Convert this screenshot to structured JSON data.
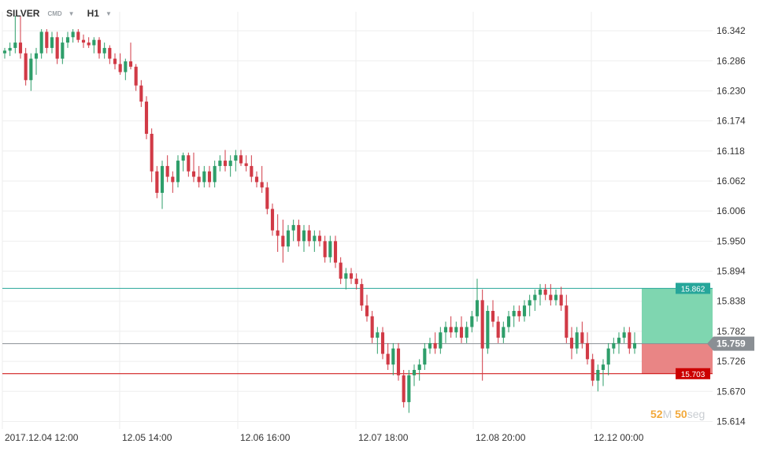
{
  "header": {
    "symbol": "SILVER",
    "badge": "CMD",
    "timeframe": "H1"
  },
  "price_axis": {
    "labels": [
      "16.342",
      "16.286",
      "16.230",
      "16.174",
      "16.118",
      "16.062",
      "16.006",
      "15.950",
      "15.894",
      "15.838",
      "15.782",
      "15.726",
      "15.670",
      "15.614"
    ],
    "values": [
      16.342,
      16.286,
      16.23,
      16.174,
      16.118,
      16.062,
      16.006,
      15.95,
      15.894,
      15.838,
      15.782,
      15.726,
      15.67,
      15.614
    ]
  },
  "time_axis": {
    "labels": [
      "2017.12.04  12:00",
      "12.05  14:00",
      "12.06  16:00",
      "12.07  18:00",
      "12.08  20:00",
      "12.12  00:00"
    ]
  },
  "levels": {
    "take_profit": {
      "value": 15.862,
      "label": "15.862",
      "color": "#26a69a"
    },
    "current": {
      "value": 15.759,
      "label": "15.759",
      "color": "#8a8f94"
    },
    "stop_loss": {
      "value": 15.703,
      "label": "15.703",
      "color": "#cc0000"
    }
  },
  "timer": {
    "minutes": "52",
    "minutes_unit": "M",
    "seconds": "50",
    "seconds_unit": "seg"
  },
  "colors": {
    "bull": "#2e9e6a",
    "bear": "#d13a46",
    "grid": "#eeeeee",
    "profit_zone": "#7fd6b0",
    "loss_zone": "#e98585"
  },
  "chart_data": {
    "type": "candlestick",
    "y_range": [
      15.6,
      16.37
    ],
    "candles": [
      [
        16.3,
        16.31,
        16.29,
        16.305
      ],
      [
        16.305,
        16.32,
        16.295,
        16.31
      ],
      [
        16.31,
        16.37,
        16.3,
        16.32
      ],
      [
        16.32,
        16.37,
        16.29,
        16.3
      ],
      [
        16.3,
        16.31,
        16.24,
        16.25
      ],
      [
        16.25,
        16.3,
        16.23,
        16.29
      ],
      [
        16.29,
        16.31,
        16.26,
        16.3
      ],
      [
        16.3,
        16.345,
        16.29,
        16.34
      ],
      [
        16.34,
        16.345,
        16.3,
        16.31
      ],
      [
        16.31,
        16.34,
        16.3,
        16.33
      ],
      [
        16.33,
        16.34,
        16.28,
        16.29
      ],
      [
        16.29,
        16.33,
        16.28,
        16.32
      ],
      [
        16.32,
        16.34,
        16.31,
        16.33
      ],
      [
        16.33,
        16.345,
        16.32,
        16.34
      ],
      [
        16.34,
        16.345,
        16.32,
        16.325
      ],
      [
        16.325,
        16.335,
        16.31,
        16.32
      ],
      [
        16.32,
        16.33,
        16.31,
        16.315
      ],
      [
        16.315,
        16.33,
        16.3,
        16.325
      ],
      [
        16.325,
        16.33,
        16.29,
        16.3
      ],
      [
        16.3,
        16.32,
        16.29,
        16.31
      ],
      [
        16.31,
        16.315,
        16.28,
        16.29
      ],
      [
        16.29,
        16.3,
        16.27,
        16.28
      ],
      [
        16.28,
        16.3,
        16.26,
        16.265
      ],
      [
        16.265,
        16.29,
        16.25,
        16.285
      ],
      [
        16.285,
        16.32,
        16.27,
        16.275
      ],
      [
        16.275,
        16.28,
        16.23,
        16.24
      ],
      [
        16.24,
        16.25,
        16.2,
        16.21
      ],
      [
        16.21,
        16.22,
        16.14,
        16.15
      ],
      [
        16.15,
        16.16,
        16.06,
        16.08
      ],
      [
        16.08,
        16.09,
        16.03,
        16.04
      ],
      [
        16.04,
        16.1,
        16.01,
        16.09
      ],
      [
        16.09,
        16.11,
        16.06,
        16.07
      ],
      [
        16.07,
        16.08,
        16.04,
        16.06
      ],
      [
        16.06,
        16.11,
        16.05,
        16.1
      ],
      [
        16.1,
        16.115,
        16.08,
        16.11
      ],
      [
        16.11,
        16.115,
        16.07,
        16.08
      ],
      [
        16.08,
        16.115,
        16.06,
        16.07
      ],
      [
        16.07,
        16.09,
        16.05,
        16.06
      ],
      [
        16.06,
        16.09,
        16.05,
        16.08
      ],
      [
        16.08,
        16.09,
        16.05,
        16.06
      ],
      [
        16.06,
        16.1,
        16.05,
        16.09
      ],
      [
        16.09,
        16.11,
        16.08,
        16.1
      ],
      [
        16.1,
        16.12,
        16.08,
        16.09
      ],
      [
        16.09,
        16.11,
        16.07,
        16.1
      ],
      [
        16.1,
        16.12,
        16.08,
        16.11
      ],
      [
        16.11,
        16.12,
        16.09,
        16.095
      ],
      [
        16.095,
        16.11,
        16.08,
        16.09
      ],
      [
        16.09,
        16.11,
        16.06,
        16.07
      ],
      [
        16.07,
        16.08,
        16.05,
        16.06
      ],
      [
        16.06,
        16.09,
        16.04,
        16.05
      ],
      [
        16.05,
        16.06,
        16.0,
        16.01
      ],
      [
        16.01,
        16.02,
        15.96,
        15.97
      ],
      [
        15.97,
        16.0,
        15.93,
        15.96
      ],
      [
        15.96,
        15.99,
        15.91,
        15.94
      ],
      [
        15.94,
        15.98,
        15.93,
        15.97
      ],
      [
        15.97,
        15.99,
        15.95,
        15.98
      ],
      [
        15.98,
        15.99,
        15.94,
        15.95
      ],
      [
        15.95,
        15.98,
        15.93,
        15.97
      ],
      [
        15.97,
        15.98,
        15.94,
        15.95
      ],
      [
        15.95,
        15.97,
        15.93,
        15.96
      ],
      [
        15.96,
        15.97,
        15.94,
        15.95
      ],
      [
        15.95,
        15.96,
        15.91,
        15.92
      ],
      [
        15.92,
        15.96,
        15.91,
        15.95
      ],
      [
        15.95,
        15.96,
        15.9,
        15.91
      ],
      [
        15.91,
        15.92,
        15.87,
        15.88
      ],
      [
        15.88,
        15.9,
        15.86,
        15.89
      ],
      [
        15.89,
        15.9,
        15.87,
        15.88
      ],
      [
        15.88,
        15.89,
        15.86,
        15.87
      ],
      [
        15.87,
        15.88,
        15.82,
        15.83
      ],
      [
        15.83,
        15.85,
        15.8,
        15.81
      ],
      [
        15.81,
        15.82,
        15.76,
        15.77
      ],
      [
        15.77,
        15.79,
        15.74,
        15.78
      ],
      [
        15.78,
        15.79,
        15.73,
        15.74
      ],
      [
        15.74,
        15.76,
        15.71,
        15.72
      ],
      [
        15.72,
        15.76,
        15.7,
        15.75
      ],
      [
        15.75,
        15.76,
        15.69,
        15.7
      ],
      [
        15.7,
        15.71,
        15.64,
        15.65
      ],
      [
        15.65,
        15.71,
        15.63,
        15.7
      ],
      [
        15.7,
        15.72,
        15.68,
        15.71
      ],
      [
        15.71,
        15.73,
        15.69,
        15.72
      ],
      [
        15.72,
        15.76,
        15.71,
        15.75
      ],
      [
        15.75,
        15.77,
        15.74,
        15.76
      ],
      [
        15.76,
        15.78,
        15.74,
        15.75
      ],
      [
        15.75,
        15.79,
        15.74,
        15.78
      ],
      [
        15.78,
        15.8,
        15.76,
        15.79
      ],
      [
        15.79,
        15.81,
        15.77,
        15.78
      ],
      [
        15.78,
        15.8,
        15.77,
        15.79
      ],
      [
        15.79,
        15.81,
        15.76,
        15.77
      ],
      [
        15.77,
        15.8,
        15.76,
        15.79
      ],
      [
        15.79,
        15.82,
        15.78,
        15.81
      ],
      [
        15.81,
        15.88,
        15.8,
        15.84
      ],
      [
        15.84,
        15.86,
        15.69,
        15.75
      ],
      [
        15.75,
        15.83,
        15.74,
        15.82
      ],
      [
        15.82,
        15.84,
        15.79,
        15.8
      ],
      [
        15.8,
        15.81,
        15.76,
        15.77
      ],
      [
        15.77,
        15.8,
        15.76,
        15.79
      ],
      [
        15.79,
        15.82,
        15.78,
        15.81
      ],
      [
        15.81,
        15.83,
        15.79,
        15.82
      ],
      [
        15.82,
        15.83,
        15.8,
        15.81
      ],
      [
        15.81,
        15.84,
        15.8,
        15.83
      ],
      [
        15.83,
        15.85,
        15.81,
        15.84
      ],
      [
        15.84,
        15.86,
        15.82,
        15.85
      ],
      [
        15.85,
        15.87,
        15.83,
        15.86
      ],
      [
        15.86,
        15.87,
        15.84,
        15.85
      ],
      [
        15.85,
        15.87,
        15.83,
        15.84
      ],
      [
        15.84,
        15.86,
        15.83,
        15.85
      ],
      [
        15.85,
        15.865,
        15.82,
        15.83
      ],
      [
        15.83,
        15.85,
        15.76,
        15.77
      ],
      [
        15.77,
        15.79,
        15.73,
        15.75
      ],
      [
        15.75,
        15.79,
        15.74,
        15.78
      ],
      [
        15.78,
        15.8,
        15.75,
        15.76
      ],
      [
        15.76,
        15.78,
        15.72,
        15.73
      ],
      [
        15.73,
        15.74,
        15.68,
        15.69
      ],
      [
        15.69,
        15.72,
        15.67,
        15.71
      ],
      [
        15.71,
        15.73,
        15.68,
        15.72
      ],
      [
        15.72,
        15.76,
        15.7,
        15.75
      ],
      [
        15.75,
        15.77,
        15.74,
        15.76
      ],
      [
        15.76,
        15.78,
        15.74,
        15.77
      ],
      [
        15.77,
        15.79,
        15.76,
        15.78
      ],
      [
        15.78,
        15.79,
        15.74,
        15.75
      ],
      [
        15.75,
        15.78,
        15.74,
        15.76
      ]
    ]
  }
}
